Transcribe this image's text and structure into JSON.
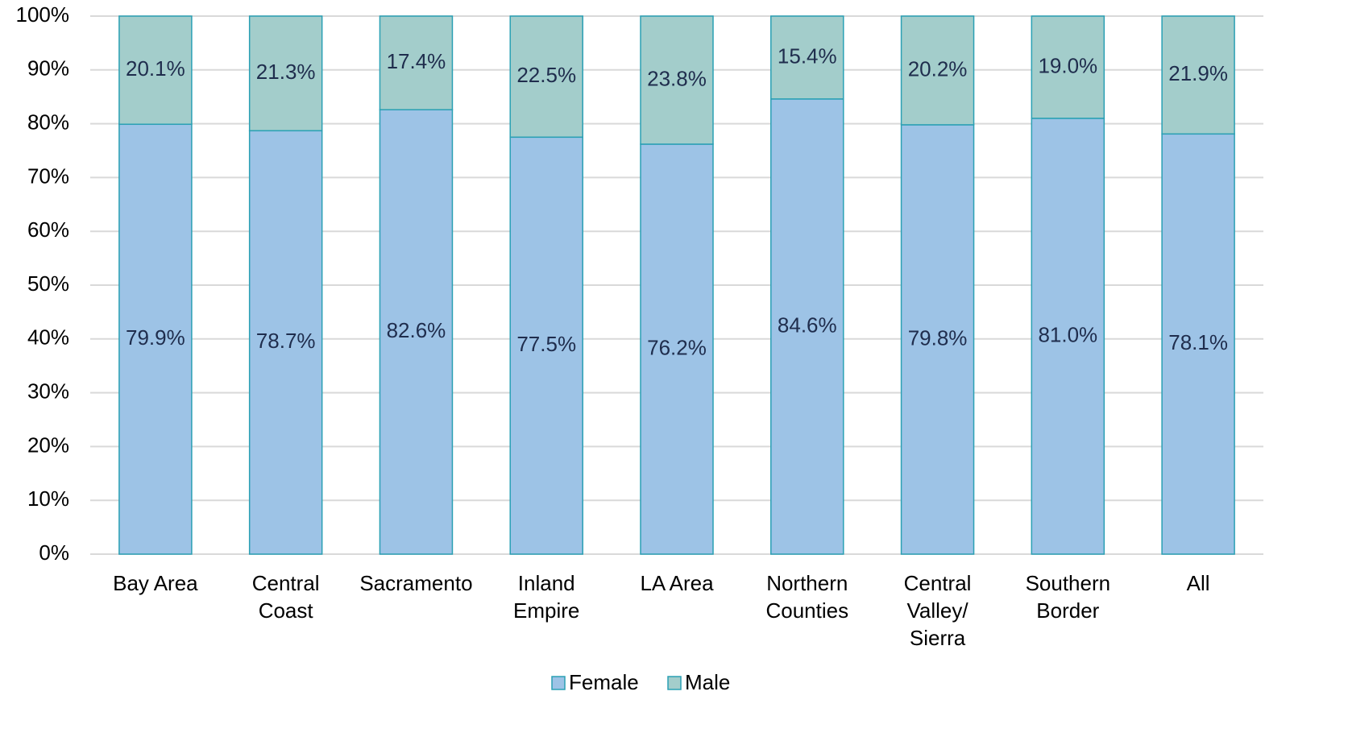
{
  "chart_data": {
    "type": "stacked_bar",
    "categories": [
      "Bay Area",
      "Central Coast",
      "Sacramento",
      "Inland Empire",
      "LA Area",
      "Northern Counties",
      "Central Valley/ Sierra",
      "Southern Border",
      "All"
    ],
    "series": [
      {
        "name": "Female",
        "color": "#9dc3e6",
        "values": [
          79.9,
          78.7,
          82.6,
          77.5,
          76.2,
          84.6,
          79.8,
          81.0,
          78.1
        ],
        "value_labels": [
          "79.9%",
          "78.7%",
          "82.6%",
          "77.5%",
          "76.2%",
          "84.6%",
          "79.8%",
          "81.0%",
          "78.1%"
        ]
      },
      {
        "name": "Male",
        "color": "#a3cdcb",
        "values": [
          20.1,
          21.3,
          17.4,
          22.5,
          23.8,
          15.4,
          20.2,
          19.0,
          21.9
        ],
        "value_labels": [
          "20.1%",
          "21.3%",
          "17.4%",
          "22.5%",
          "23.8%",
          "15.4%",
          "20.2%",
          "19.0%",
          "21.9%"
        ]
      }
    ],
    "ylim": [
      0,
      100
    ],
    "yticks": [
      {
        "value": 0,
        "label": "0%"
      },
      {
        "value": 10,
        "label": "10%"
      },
      {
        "value": 20,
        "label": "20%"
      },
      {
        "value": 30,
        "label": "30%"
      },
      {
        "value": 40,
        "label": "40%"
      },
      {
        "value": 50,
        "label": "50%"
      },
      {
        "value": 60,
        "label": "60%"
      },
      {
        "value": 70,
        "label": "70%"
      },
      {
        "value": 80,
        "label": "80%"
      },
      {
        "value": 90,
        "label": "90%"
      },
      {
        "value": 100,
        "label": "100%"
      }
    ],
    "grid": true,
    "legend": "bottom"
  }
}
